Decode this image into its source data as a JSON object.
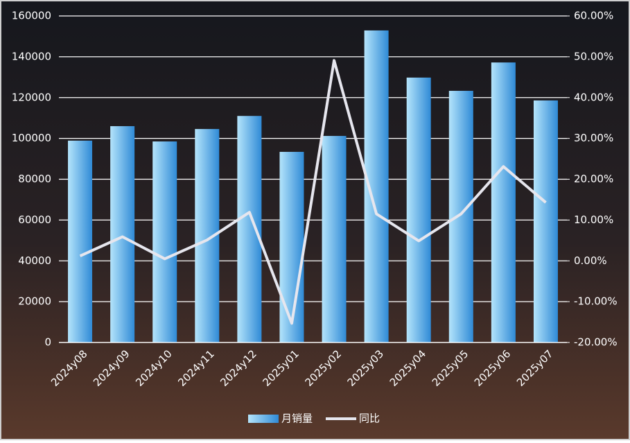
{
  "chart_data": {
    "type": "bar_line",
    "categories": [
      "2024y08",
      "2024y09",
      "2024y10",
      "2024y11",
      "2024y12",
      "2025y01",
      "2025y02",
      "2025y03",
      "2025y04",
      "2025y05",
      "2025y06",
      "2025y07"
    ],
    "series": [
      {
        "name": "月销量",
        "type": "bar",
        "color": "#2f8ad6",
        "values": [
          98900,
          106000,
          98500,
          104600,
          111000,
          93400,
          101200,
          152900,
          129800,
          123300,
          137200,
          118600
        ]
      },
      {
        "name": "同比",
        "type": "line",
        "axis": "y2",
        "color": "#e6e6ee",
        "values": [
          1.2,
          5.9,
          0.5,
          5.1,
          11.9,
          -15.3,
          49.1,
          11.5,
          4.9,
          11.5,
          23.1,
          14.3
        ]
      }
    ],
    "ylim": [
      0,
      160000
    ],
    "yticks": [
      0,
      20000,
      40000,
      60000,
      80000,
      100000,
      120000,
      140000,
      160000
    ],
    "y2lim": [
      -20,
      60
    ],
    "y2ticks": [
      {
        "value": -20,
        "label": "-20.00%"
      },
      {
        "value": -10,
        "label": "-10.00%"
      },
      {
        "value": 0,
        "label": "0.00%"
      },
      {
        "value": 10,
        "label": "10.00%"
      },
      {
        "value": 20,
        "label": "20.00%"
      },
      {
        "value": 30,
        "label": "30.00%"
      },
      {
        "value": 40,
        "label": "40.00%"
      },
      {
        "value": 50,
        "label": "50.00%"
      },
      {
        "value": 60,
        "label": "60.00%"
      }
    ],
    "grid": true,
    "legend": "bottom"
  }
}
